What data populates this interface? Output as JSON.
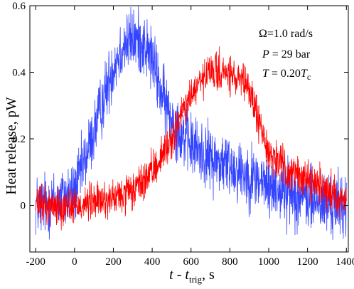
{
  "chart_data": {
    "type": "line",
    "ylabel": "Heat release, pW",
    "xlabel": {
      "var": "t",
      "sep": " - ",
      "var2": "t",
      "sub": "trig",
      "unit": ", s"
    },
    "xlim": [
      -230,
      1410
    ],
    "ylim": [
      -0.14,
      0.6
    ],
    "xticks": [
      -200,
      0,
      200,
      400,
      600,
      800,
      1000,
      1200,
      1400
    ],
    "yticks": [
      0,
      0.2,
      0.4,
      0.6
    ],
    "ytick_labels": [
      "0",
      "0.2",
      "0.4",
      "0.6"
    ],
    "annotations": {
      "omega": "Ω=1.0 rad/s",
      "p_sym": "P",
      "p_val": " =  29 bar",
      "t_sym": "T",
      "t_val": " =  0.20",
      "t_sym2": "T",
      "t_sub": "c"
    },
    "series": [
      {
        "color": "#3344ff",
        "x": [
          -200,
          -100,
          0,
          100,
          200,
          250,
          300,
          350,
          400,
          450,
          500,
          600,
          700,
          800,
          900,
          1000,
          1100,
          1200,
          1300,
          1400
        ],
        "y": [
          0.0,
          0.01,
          0.04,
          0.22,
          0.42,
          0.48,
          0.5,
          0.49,
          0.44,
          0.33,
          0.26,
          0.18,
          0.14,
          0.12,
          0.09,
          0.06,
          0.04,
          0.02,
          0.0,
          0.0
        ],
        "noise": 0.06
      },
      {
        "color": "#ff0000",
        "x": [
          -200,
          -100,
          0,
          100,
          200,
          300,
          400,
          500,
          550,
          600,
          650,
          700,
          750,
          800,
          850,
          900,
          950,
          1000,
          1100,
          1200,
          1300,
          1400
        ],
        "y": [
          0.0,
          0.0,
          0.0,
          0.01,
          0.02,
          0.04,
          0.1,
          0.2,
          0.27,
          0.33,
          0.37,
          0.4,
          0.4,
          0.39,
          0.37,
          0.35,
          0.25,
          0.16,
          0.1,
          0.08,
          0.05,
          0.01
        ],
        "noise": 0.035
      }
    ]
  }
}
